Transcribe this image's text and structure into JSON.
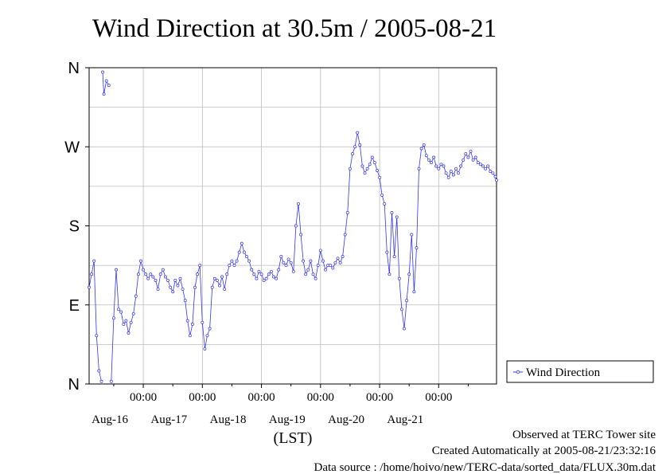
{
  "chart_data": {
    "type": "line",
    "title": "Wind Direction at 30.5m / 2005-08-21",
    "xlabel": "(LST)",
    "ylabel": "",
    "y_ticks": [
      {
        "label": "N",
        "value": 0
      },
      {
        "label": "E",
        "value": 90
      },
      {
        "label": "S",
        "value": 180
      },
      {
        "label": "W",
        "value": 270
      },
      {
        "label": "N",
        "value": 360
      }
    ],
    "ylim": [
      0,
      360
    ],
    "x_range_days": [
      "2005-08-15T02:00",
      "2005-08-21T23:30"
    ],
    "x_ticks": [
      {
        "time": "00:00",
        "date": "Aug-16"
      },
      {
        "time": "00:00",
        "date": "Aug-17"
      },
      {
        "time": "00:00",
        "date": "Aug-18"
      },
      {
        "time": "00:00",
        "date": "Aug-19"
      },
      {
        "time": "00:00",
        "date": "Aug-20"
      },
      {
        "time": "00:00",
        "date": "Aug-21"
      }
    ],
    "grid": true,
    "legend_position": "right",
    "series": [
      {
        "name": "Wind Direction",
        "color": "#3333ee",
        "points": [
          [
            "2005-08-15T02:00",
            110
          ],
          [
            "2005-08-15T03:00",
            125
          ],
          [
            "2005-08-15T04:00",
            140
          ],
          [
            "2005-08-15T05:00",
            55
          ],
          [
            "2005-08-15T06:00",
            15
          ],
          [
            "2005-08-15T07:00",
            3
          ],
          [
            "2005-08-15T07:30",
            355
          ],
          [
            "2005-08-15T08:00",
            330
          ],
          [
            "2005-08-15T09:00",
            345
          ],
          [
            "2005-08-15T10:00",
            340
          ],
          [
            "2005-08-15T11:00",
            3
          ],
          [
            "2005-08-15T12:00",
            75
          ],
          [
            "2005-08-15T13:00",
            130
          ],
          [
            "2005-08-15T14:00",
            85
          ],
          [
            "2005-08-15T15:00",
            82
          ],
          [
            "2005-08-15T16:00",
            68
          ],
          [
            "2005-08-15T17:00",
            72
          ],
          [
            "2005-08-15T18:00",
            58
          ],
          [
            "2005-08-15T19:00",
            70
          ],
          [
            "2005-08-15T20:00",
            80
          ],
          [
            "2005-08-15T21:00",
            100
          ],
          [
            "2005-08-15T22:00",
            125
          ],
          [
            "2005-08-15T23:00",
            140
          ],
          [
            "2005-08-16T00:00",
            130
          ],
          [
            "2005-08-16T01:00",
            125
          ],
          [
            "2005-08-16T02:00",
            120
          ],
          [
            "2005-08-16T03:00",
            125
          ],
          [
            "2005-08-16T04:00",
            122
          ],
          [
            "2005-08-16T05:00",
            118
          ],
          [
            "2005-08-16T06:00",
            108
          ],
          [
            "2005-08-16T07:00",
            125
          ],
          [
            "2005-08-16T08:00",
            130
          ],
          [
            "2005-08-16T09:00",
            122
          ],
          [
            "2005-08-16T10:00",
            118
          ],
          [
            "2005-08-16T11:00",
            110
          ],
          [
            "2005-08-16T12:00",
            105
          ],
          [
            "2005-08-16T13:00",
            118
          ],
          [
            "2005-08-16T14:00",
            112
          ],
          [
            "2005-08-16T15:00",
            120
          ],
          [
            "2005-08-16T16:00",
            108
          ],
          [
            "2005-08-16T17:00",
            95
          ],
          [
            "2005-08-16T18:00",
            72
          ],
          [
            "2005-08-16T19:00",
            55
          ],
          [
            "2005-08-16T20:00",
            68
          ],
          [
            "2005-08-16T21:00",
            110
          ],
          [
            "2005-08-16T22:00",
            125
          ],
          [
            "2005-08-16T23:00",
            135
          ],
          [
            "2005-08-17T00:00",
            70
          ],
          [
            "2005-08-17T01:00",
            40
          ],
          [
            "2005-08-17T02:00",
            55
          ],
          [
            "2005-08-17T03:00",
            63
          ],
          [
            "2005-08-17T04:00",
            110
          ],
          [
            "2005-08-17T05:00",
            120
          ],
          [
            "2005-08-17T06:00",
            118
          ],
          [
            "2005-08-17T07:00",
            112
          ],
          [
            "2005-08-17T08:00",
            122
          ],
          [
            "2005-08-17T09:00",
            108
          ],
          [
            "2005-08-17T10:00",
            125
          ],
          [
            "2005-08-17T11:00",
            135
          ],
          [
            "2005-08-17T12:00",
            140
          ],
          [
            "2005-08-17T13:00",
            135
          ],
          [
            "2005-08-17T14:00",
            140
          ],
          [
            "2005-08-17T15:00",
            150
          ],
          [
            "2005-08-17T16:00",
            160
          ],
          [
            "2005-08-17T17:00",
            150
          ],
          [
            "2005-08-17T18:00",
            145
          ],
          [
            "2005-08-17T19:00",
            140
          ],
          [
            "2005-08-17T20:00",
            130
          ],
          [
            "2005-08-17T21:00",
            125
          ],
          [
            "2005-08-17T22:00",
            120
          ],
          [
            "2005-08-17T23:00",
            128
          ],
          [
            "2005-08-18T00:00",
            125
          ],
          [
            "2005-08-18T01:00",
            118
          ],
          [
            "2005-08-18T02:00",
            120
          ],
          [
            "2005-08-18T03:00",
            125
          ],
          [
            "2005-08-18T04:00",
            128
          ],
          [
            "2005-08-18T05:00",
            122
          ],
          [
            "2005-08-18T06:00",
            120
          ],
          [
            "2005-08-18T07:00",
            130
          ],
          [
            "2005-08-18T08:00",
            145
          ],
          [
            "2005-08-18T09:00",
            138
          ],
          [
            "2005-08-18T10:00",
            135
          ],
          [
            "2005-08-18T11:00",
            142
          ],
          [
            "2005-08-18T12:00",
            138
          ],
          [
            "2005-08-18T13:00",
            128
          ],
          [
            "2005-08-18T14:00",
            180
          ],
          [
            "2005-08-18T15:00",
            205
          ],
          [
            "2005-08-18T16:00",
            170
          ],
          [
            "2005-08-18T17:00",
            140
          ],
          [
            "2005-08-18T18:00",
            125
          ],
          [
            "2005-08-18T19:00",
            130
          ],
          [
            "2005-08-18T20:00",
            140
          ],
          [
            "2005-08-18T21:00",
            125
          ],
          [
            "2005-08-18T22:00",
            120
          ],
          [
            "2005-08-18T23:00",
            135
          ],
          [
            "2005-08-19T00:00",
            152
          ],
          [
            "2005-08-19T01:00",
            140
          ],
          [
            "2005-08-19T02:00",
            130
          ],
          [
            "2005-08-19T03:00",
            135
          ],
          [
            "2005-08-19T04:00",
            135
          ],
          [
            "2005-08-19T05:00",
            132
          ],
          [
            "2005-08-19T06:00",
            138
          ],
          [
            "2005-08-19T07:00",
            143
          ],
          [
            "2005-08-19T08:00",
            138
          ],
          [
            "2005-08-19T09:00",
            145
          ],
          [
            "2005-08-19T10:00",
            170
          ],
          [
            "2005-08-19T11:00",
            195
          ],
          [
            "2005-08-19T12:00",
            245
          ],
          [
            "2005-08-19T13:00",
            262
          ],
          [
            "2005-08-19T14:00",
            270
          ],
          [
            "2005-08-19T15:00",
            286
          ],
          [
            "2005-08-19T16:00",
            272
          ],
          [
            "2005-08-19T17:00",
            248
          ],
          [
            "2005-08-19T18:00",
            240
          ],
          [
            "2005-08-19T19:00",
            245
          ],
          [
            "2005-08-19T20:00",
            250
          ],
          [
            "2005-08-19T21:00",
            258
          ],
          [
            "2005-08-19T22:00",
            252
          ],
          [
            "2005-08-19T23:00",
            243
          ],
          [
            "2005-08-20T00:00",
            235
          ],
          [
            "2005-08-20T01:00",
            215
          ],
          [
            "2005-08-20T02:00",
            205
          ],
          [
            "2005-08-20T03:00",
            150
          ],
          [
            "2005-08-20T04:00",
            125
          ],
          [
            "2005-08-20T05:00",
            195
          ],
          [
            "2005-08-20T06:00",
            145
          ],
          [
            "2005-08-20T07:00",
            190
          ],
          [
            "2005-08-20T08:00",
            120
          ],
          [
            "2005-08-20T09:00",
            85
          ],
          [
            "2005-08-20T10:00",
            63
          ],
          [
            "2005-08-20T11:00",
            95
          ],
          [
            "2005-08-20T12:00",
            125
          ],
          [
            "2005-08-20T13:00",
            170
          ],
          [
            "2005-08-20T14:00",
            105
          ],
          [
            "2005-08-20T15:00",
            155
          ],
          [
            "2005-08-20T16:00",
            245
          ],
          [
            "2005-08-20T17:00",
            268
          ],
          [
            "2005-08-20T18:00",
            272
          ],
          [
            "2005-08-20T19:00",
            260
          ],
          [
            "2005-08-20T20:00",
            255
          ],
          [
            "2005-08-20T21:00",
            252
          ],
          [
            "2005-08-20T22:00",
            258
          ],
          [
            "2005-08-20T23:00",
            248
          ],
          [
            "2005-08-21T00:00",
            245
          ],
          [
            "2005-08-21T01:00",
            250
          ],
          [
            "2005-08-21T02:00",
            248
          ],
          [
            "2005-08-21T03:00",
            240
          ],
          [
            "2005-08-21T04:00",
            235
          ],
          [
            "2005-08-21T05:00",
            242
          ],
          [
            "2005-08-21T06:00",
            238
          ],
          [
            "2005-08-21T07:00",
            245
          ],
          [
            "2005-08-21T08:00",
            240
          ],
          [
            "2005-08-21T09:00",
            248
          ],
          [
            "2005-08-21T10:00",
            255
          ],
          [
            "2005-08-21T11:00",
            262
          ],
          [
            "2005-08-21T12:00",
            258
          ],
          [
            "2005-08-21T13:00",
            265
          ],
          [
            "2005-08-21T14:00",
            255
          ],
          [
            "2005-08-21T15:00",
            258
          ],
          [
            "2005-08-21T16:00",
            252
          ],
          [
            "2005-08-21T17:00",
            250
          ],
          [
            "2005-08-21T18:00",
            248
          ],
          [
            "2005-08-21T19:00",
            245
          ],
          [
            "2005-08-21T20:00",
            248
          ],
          [
            "2005-08-21T21:00",
            242
          ],
          [
            "2005-08-21T22:00",
            240
          ],
          [
            "2005-08-21T23:00",
            236
          ],
          [
            "2005-08-21T23:30",
            232
          ]
        ]
      }
    ]
  },
  "footer": {
    "line1": "Observed at TERC Tower site",
    "line2": "Created Automatically at 2005-08-21/23:32:16",
    "line3": "Data source : /home/hoivo/new/TERC-data/sorted_data/FLUX.30m.dat"
  }
}
